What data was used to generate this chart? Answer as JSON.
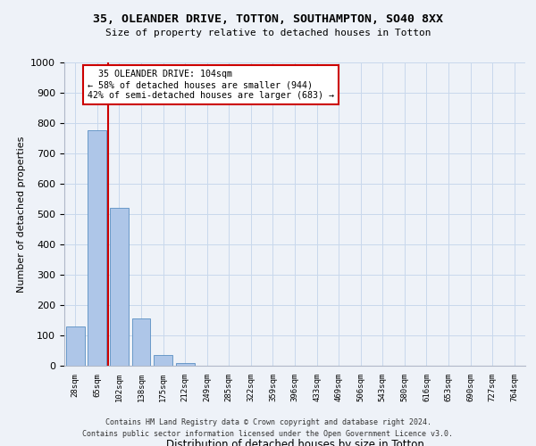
{
  "title_line1": "35, OLEANDER DRIVE, TOTTON, SOUTHAMPTON, SO40 8XX",
  "title_line2": "Size of property relative to detached houses in Totton",
  "xlabel": "Distribution of detached houses by size in Totton",
  "ylabel": "Number of detached properties",
  "categories": [
    "28sqm",
    "65sqm",
    "102sqm",
    "138sqm",
    "175sqm",
    "212sqm",
    "249sqm",
    "285sqm",
    "322sqm",
    "359sqm",
    "396sqm",
    "433sqm",
    "469sqm",
    "506sqm",
    "543sqm",
    "580sqm",
    "616sqm",
    "653sqm",
    "690sqm",
    "727sqm",
    "764sqm"
  ],
  "bar_values": [
    130,
    775,
    520,
    155,
    35,
    10,
    0,
    0,
    0,
    0,
    0,
    0,
    0,
    0,
    0,
    0,
    0,
    0,
    0,
    0,
    0
  ],
  "bar_color": "#aec6e8",
  "bar_edge_color": "#5a8fc2",
  "vline_color": "#cc0000",
  "annotation_text": "  35 OLEANDER DRIVE: 104sqm\n← 58% of detached houses are smaller (944)\n42% of semi-detached houses are larger (683) →",
  "annotation_box_color": "#ffffff",
  "annotation_box_edge": "#cc0000",
  "ylim": [
    0,
    1000
  ],
  "yticks": [
    0,
    100,
    200,
    300,
    400,
    500,
    600,
    700,
    800,
    900,
    1000
  ],
  "grid_color": "#c8d8ec",
  "footer_line1": "Contains HM Land Registry data © Crown copyright and database right 2024.",
  "footer_line2": "Contains public sector information licensed under the Open Government Licence v3.0.",
  "bg_color": "#eef2f8"
}
